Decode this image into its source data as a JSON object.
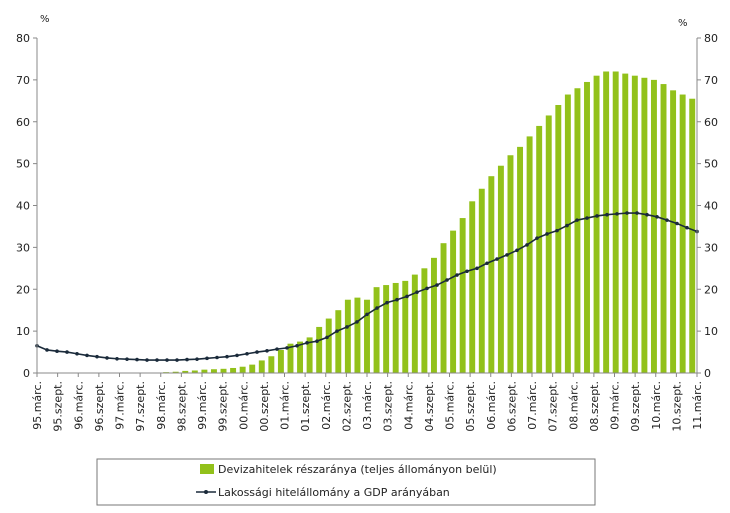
{
  "chart_data": {
    "type": "bar",
    "title": "",
    "y_unit_left": "%",
    "y_unit_right": "%",
    "ylim": [
      0,
      80
    ],
    "y_ticks": [
      0,
      10,
      20,
      30,
      40,
      50,
      60,
      70,
      80
    ],
    "grid": false,
    "legend_placement": "bottom",
    "x_tick_labels": [
      "95.márc.",
      "95.szept.",
      "96.márc.",
      "96.szept.",
      "97.márc.",
      "97.szept.",
      "98.márc.",
      "98.szept.",
      "99.márc.",
      "99.szept.",
      "00.márc.",
      "00.szept.",
      "01.márc.",
      "01.szept.",
      "02.márc.",
      "02.szept.",
      "03.márc.",
      "03.szept.",
      "04.márc.",
      "04.szept.",
      "05.márc.",
      "05.szept.",
      "06.márc.",
      "06.szept.",
      "07.márc.",
      "07.szept.",
      "08.márc.",
      "08.szept.",
      "09.márc.",
      "09.szept.",
      "10.márc.",
      "10.szept.",
      "11.márc."
    ],
    "series": [
      {
        "name": "Devizahitelek részaránya  (teljes állományon belül)",
        "kind": "bar",
        "color": "#92c11a",
        "values": [
          0.1,
          0.1,
          0.1,
          0.1,
          0.1,
          0.1,
          0.1,
          0.1,
          0.1,
          0.1,
          0.1,
          0.1,
          0.1,
          0.2,
          0.3,
          0.5,
          0.6,
          0.8,
          0.9,
          1.0,
          1.2,
          1.5,
          2.0,
          3.0,
          4.0,
          5.5,
          7.0,
          7.5,
          8.5,
          11,
          13,
          15,
          17.5,
          18,
          17.5,
          20.5,
          21,
          21.5,
          22,
          23.5,
          25,
          27.5,
          31,
          34,
          37,
          41,
          44,
          47,
          49.5,
          52,
          54,
          56.5,
          59,
          61.5,
          64,
          66.5,
          68,
          69.5,
          71,
          72,
          72,
          71.5,
          71,
          70.5,
          70,
          69,
          67.5,
          66.5,
          65.5
        ]
      },
      {
        "name": "Lakossági hitelállomány a GDP arányában",
        "kind": "line",
        "color": "#1a2a3a",
        "values": [
          6.5,
          5.5,
          5.2,
          5.0,
          4.6,
          4.2,
          3.9,
          3.6,
          3.4,
          3.3,
          3.2,
          3.1,
          3.1,
          3.1,
          3.1,
          3.2,
          3.3,
          3.5,
          3.7,
          3.9,
          4.2,
          4.6,
          5.0,
          5.3,
          5.7,
          6.0,
          6.5,
          7.2,
          7.6,
          8.5,
          10,
          11,
          12.2,
          14,
          15.5,
          16.8,
          17.5,
          18.3,
          19.3,
          20.2,
          21,
          22.2,
          23.4,
          24.3,
          25,
          26.2,
          27.2,
          28.2,
          29.3,
          30.6,
          32.2,
          33.2,
          34,
          35.2,
          36.5,
          37,
          37.5,
          37.8,
          38,
          38.2,
          38.2,
          37.8,
          37.3,
          36.5,
          35.7,
          34.7,
          33.8
        ]
      }
    ]
  }
}
